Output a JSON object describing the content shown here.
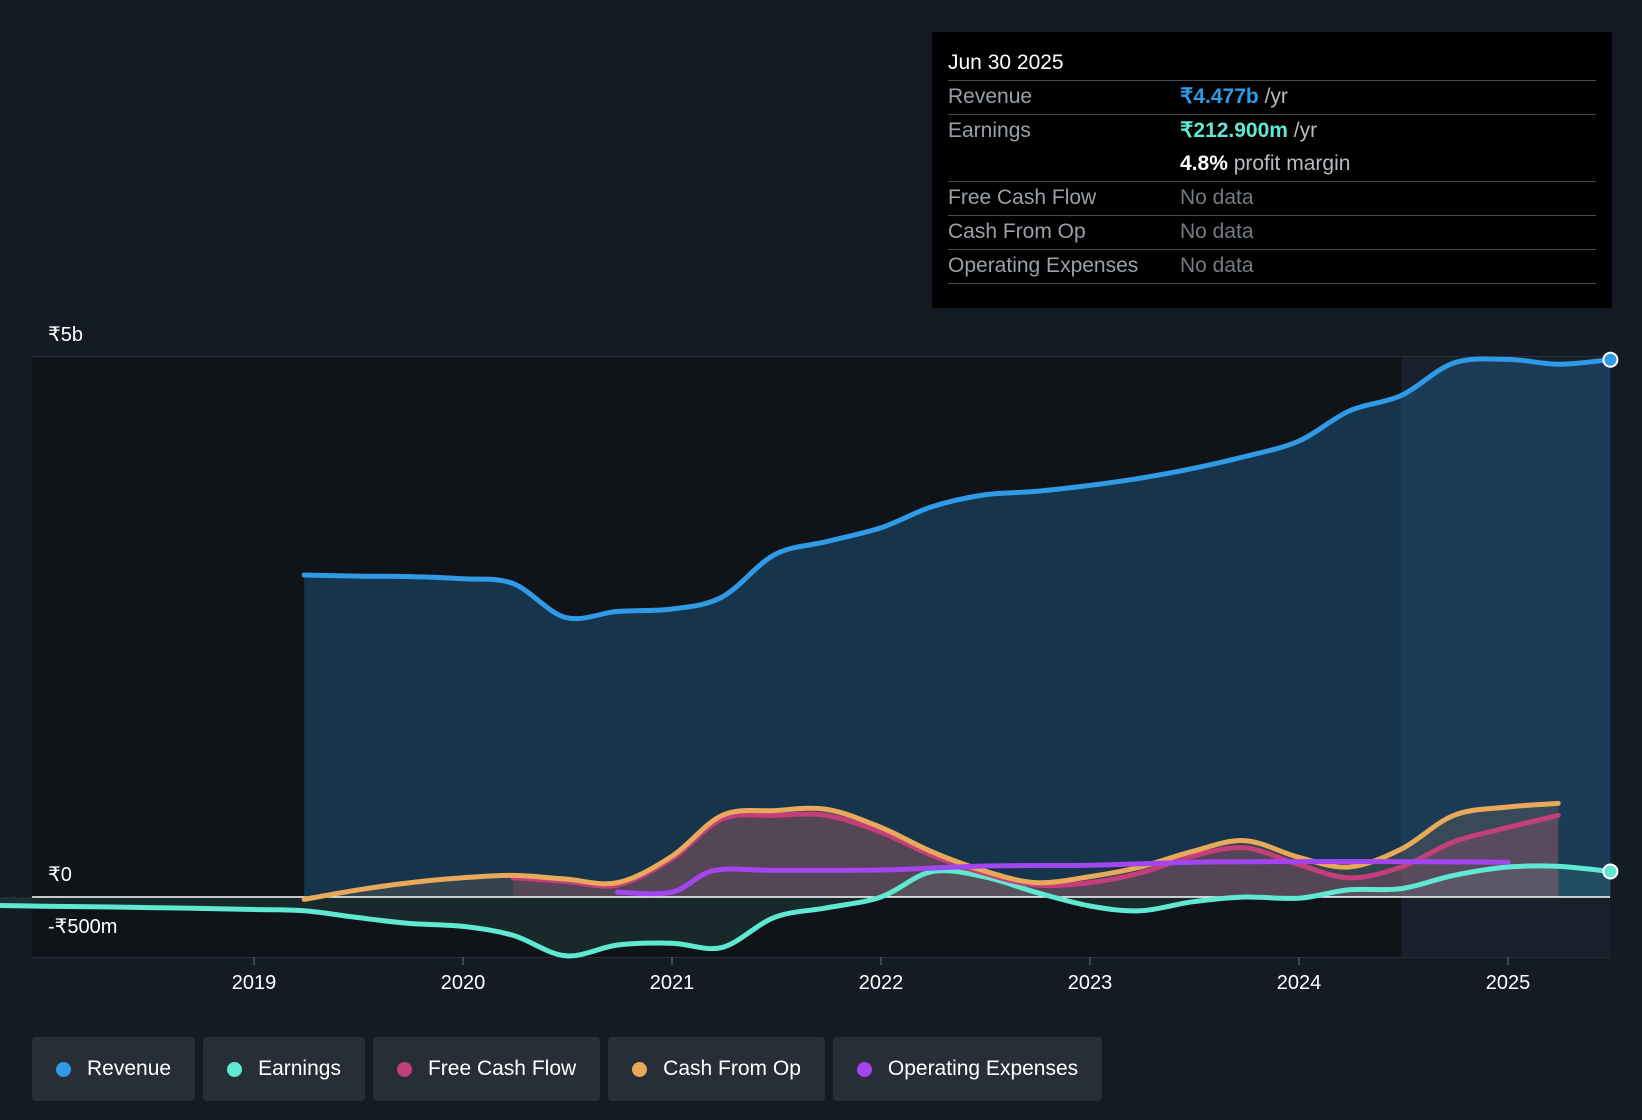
{
  "tooltip": {
    "date": "Jun 30 2025",
    "rows": [
      {
        "label": "Revenue",
        "value": "₹4.477b",
        "unit": " /yr"
      },
      {
        "label": "Earnings",
        "value": "₹212.900m",
        "unit": " /yr"
      },
      {
        "label": "",
        "value": "4.8%",
        "unit": " profit margin"
      },
      {
        "label": "Free Cash Flow",
        "value": "No data"
      },
      {
        "label": "Cash From Op",
        "value": "No data"
      },
      {
        "label": "Operating Expenses",
        "value": "No data"
      }
    ]
  },
  "legend": [
    {
      "label": "Revenue",
      "color": "#2f9ae6"
    },
    {
      "label": "Earnings",
      "color": "#5fe8d2"
    },
    {
      "label": "Free Cash Flow",
      "color": "#c43e7c"
    },
    {
      "label": "Cash From Op",
      "color": "#e8a95a"
    },
    {
      "label": "Operating Expenses",
      "color": "#a346f0"
    }
  ],
  "chart_data": {
    "type": "line",
    "title": "",
    "xlabel": "",
    "ylabel": "",
    "ylim": [
      -500,
      4500
    ],
    "xlim": [
      2017.99,
      2025.49
    ],
    "y_tick_labels": [
      {
        "value": 4500,
        "label": "₹5b"
      },
      {
        "value": 0,
        "label": "₹0"
      },
      {
        "value": -500,
        "label": "-₹500m"
      }
    ],
    "x_ticks": [
      2019,
      2020,
      2021,
      2022,
      2023,
      2024,
      2025
    ],
    "x_tick_labels": [
      "2019",
      "2020",
      "2021",
      "2022",
      "2023",
      "2024",
      "2025"
    ],
    "highlight_start": 2024.49,
    "series": [
      {
        "name": "Revenue",
        "color": "#2f9ae6",
        "fill": true,
        "points": [
          [
            2019.24,
            2683
          ],
          [
            2019.5,
            2674
          ],
          [
            2019.75,
            2670
          ],
          [
            2020,
            2652
          ],
          [
            2020.24,
            2612
          ],
          [
            2020.49,
            2330
          ],
          [
            2020.74,
            2380
          ],
          [
            2021,
            2400
          ],
          [
            2021.24,
            2500
          ],
          [
            2021.49,
            2852
          ],
          [
            2021.74,
            2962
          ],
          [
            2022,
            3077
          ],
          [
            2022.24,
            3250
          ],
          [
            2022.49,
            3350
          ],
          [
            2022.74,
            3380
          ],
          [
            2023,
            3430
          ],
          [
            2023.24,
            3490
          ],
          [
            2023.49,
            3570
          ],
          [
            2023.74,
            3670
          ],
          [
            2024,
            3800
          ],
          [
            2024.24,
            4050
          ],
          [
            2024.49,
            4180
          ],
          [
            2024.74,
            4450
          ],
          [
            2025,
            4480
          ],
          [
            2025.24,
            4440
          ],
          [
            2025.49,
            4477
          ]
        ]
      },
      {
        "name": "Earnings",
        "color": "#5fe8d2",
        "fill": true,
        "points": [
          [
            2017.74,
            -70
          ],
          [
            2018,
            -77
          ],
          [
            2018.5,
            -88
          ],
          [
            2019,
            -104
          ],
          [
            2019.24,
            -115
          ],
          [
            2019.49,
            -170
          ],
          [
            2019.74,
            -220
          ],
          [
            2020,
            -245
          ],
          [
            2020.24,
            -320
          ],
          [
            2020.49,
            -490
          ],
          [
            2020.74,
            -400
          ],
          [
            2021,
            -385
          ],
          [
            2021.24,
            -420
          ],
          [
            2021.49,
            -170
          ],
          [
            2021.74,
            -90
          ],
          [
            2022,
            0
          ],
          [
            2022.24,
            210
          ],
          [
            2022.49,
            170
          ],
          [
            2022.74,
            40
          ],
          [
            2023,
            -75
          ],
          [
            2023.24,
            -115
          ],
          [
            2023.49,
            -40
          ],
          [
            2023.74,
            0
          ],
          [
            2024,
            -10
          ],
          [
            2024.24,
            60
          ],
          [
            2024.49,
            70
          ],
          [
            2024.74,
            180
          ],
          [
            2025,
            250
          ],
          [
            2025.24,
            255
          ],
          [
            2025.49,
            213
          ]
        ]
      },
      {
        "name": "Free Cash Flow",
        "color": "#c43e7c",
        "fill": true,
        "points": [
          [
            2020.24,
            160
          ],
          [
            2020.49,
            130
          ],
          [
            2020.74,
            100
          ],
          [
            2021,
            320
          ],
          [
            2021.24,
            650
          ],
          [
            2021.49,
            680
          ],
          [
            2021.74,
            680
          ],
          [
            2022,
            540
          ],
          [
            2022.24,
            350
          ],
          [
            2022.49,
            200
          ],
          [
            2022.74,
            100
          ],
          [
            2023,
            120
          ],
          [
            2023.24,
            200
          ],
          [
            2023.49,
            340
          ],
          [
            2023.74,
            410
          ],
          [
            2024,
            270
          ],
          [
            2024.24,
            160
          ],
          [
            2024.49,
            250
          ],
          [
            2024.74,
            460
          ],
          [
            2025,
            580
          ],
          [
            2025.24,
            680
          ]
        ]
      },
      {
        "name": "Cash From Op",
        "color": "#e8a95a",
        "fill": true,
        "points": [
          [
            2019.24,
            -20
          ],
          [
            2019.5,
            60
          ],
          [
            2019.75,
            120
          ],
          [
            2020,
            160
          ],
          [
            2020.24,
            180
          ],
          [
            2020.49,
            150
          ],
          [
            2020.74,
            120
          ],
          [
            2021,
            340
          ],
          [
            2021.24,
            680
          ],
          [
            2021.49,
            720
          ],
          [
            2021.74,
            730
          ],
          [
            2022,
            580
          ],
          [
            2022.24,
            380
          ],
          [
            2022.49,
            220
          ],
          [
            2022.74,
            120
          ],
          [
            2023,
            170
          ],
          [
            2023.24,
            250
          ],
          [
            2023.49,
            380
          ],
          [
            2023.74,
            470
          ],
          [
            2024,
            330
          ],
          [
            2024.24,
            250
          ],
          [
            2024.49,
            400
          ],
          [
            2024.74,
            680
          ],
          [
            2025,
            750
          ],
          [
            2025.24,
            780
          ]
        ]
      },
      {
        "name": "Operating Expenses",
        "color": "#a346f0",
        "fill": false,
        "points": [
          [
            2020.74,
            40
          ],
          [
            2021,
            40
          ],
          [
            2021.2,
            220
          ],
          [
            2021.5,
            222
          ],
          [
            2022,
            225
          ],
          [
            2022.5,
            258
          ],
          [
            2023,
            265
          ],
          [
            2023.5,
            290
          ],
          [
            2024,
            295
          ],
          [
            2024.5,
            295
          ],
          [
            2025,
            290
          ]
        ]
      }
    ]
  }
}
